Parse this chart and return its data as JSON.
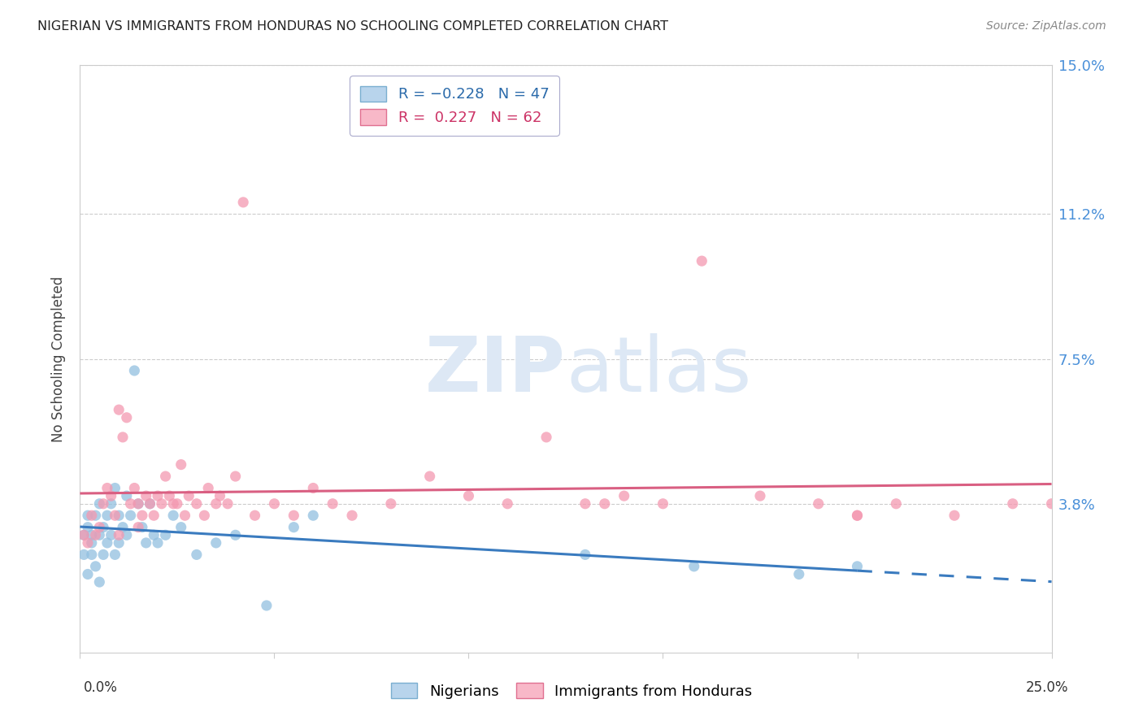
{
  "title": "NIGERIAN VS IMMIGRANTS FROM HONDURAS NO SCHOOLING COMPLETED CORRELATION CHART",
  "source": "Source: ZipAtlas.com",
  "ylabel": "No Schooling Completed",
  "yticks": [
    0.0,
    0.038,
    0.075,
    0.112,
    0.15
  ],
  "ytick_labels": [
    "",
    "3.8%",
    "7.5%",
    "11.2%",
    "15.0%"
  ],
  "xlim": [
    0.0,
    0.25
  ],
  "ylim": [
    0.0,
    0.15
  ],
  "blue_color": "#92c0e0",
  "pink_color": "#f498b0",
  "blue_line_color": "#3a7bbf",
  "pink_line_color": "#d95f82",
  "background_color": "#ffffff",
  "watermark_color": "#dde8f5",
  "grid_color": "#cccccc",
  "nigerian_x": [
    0.001,
    0.001,
    0.002,
    0.002,
    0.002,
    0.003,
    0.003,
    0.003,
    0.004,
    0.004,
    0.005,
    0.005,
    0.005,
    0.006,
    0.006,
    0.007,
    0.007,
    0.008,
    0.008,
    0.009,
    0.009,
    0.01,
    0.01,
    0.011,
    0.012,
    0.012,
    0.013,
    0.014,
    0.015,
    0.016,
    0.017,
    0.018,
    0.019,
    0.02,
    0.022,
    0.024,
    0.026,
    0.03,
    0.035,
    0.04,
    0.048,
    0.055,
    0.06,
    0.13,
    0.158,
    0.185,
    0.2
  ],
  "nigerian_y": [
    0.025,
    0.03,
    0.02,
    0.032,
    0.035,
    0.025,
    0.03,
    0.028,
    0.022,
    0.035,
    0.018,
    0.03,
    0.038,
    0.032,
    0.025,
    0.028,
    0.035,
    0.038,
    0.03,
    0.042,
    0.025,
    0.035,
    0.028,
    0.032,
    0.04,
    0.03,
    0.035,
    0.072,
    0.038,
    0.032,
    0.028,
    0.038,
    0.03,
    0.028,
    0.03,
    0.035,
    0.032,
    0.025,
    0.028,
    0.03,
    0.012,
    0.032,
    0.035,
    0.025,
    0.022,
    0.02,
    0.022
  ],
  "honduras_x": [
    0.001,
    0.002,
    0.003,
    0.004,
    0.005,
    0.006,
    0.007,
    0.008,
    0.009,
    0.01,
    0.01,
    0.011,
    0.012,
    0.013,
    0.014,
    0.015,
    0.015,
    0.016,
    0.017,
    0.018,
    0.019,
    0.02,
    0.021,
    0.022,
    0.023,
    0.024,
    0.025,
    0.026,
    0.027,
    0.028,
    0.03,
    0.032,
    0.033,
    0.035,
    0.036,
    0.038,
    0.04,
    0.042,
    0.045,
    0.05,
    0.055,
    0.06,
    0.065,
    0.07,
    0.08,
    0.09,
    0.1,
    0.11,
    0.12,
    0.13,
    0.14,
    0.15,
    0.16,
    0.175,
    0.19,
    0.2,
    0.21,
    0.225,
    0.24,
    0.25,
    0.135,
    0.2
  ],
  "honduras_y": [
    0.03,
    0.028,
    0.035,
    0.03,
    0.032,
    0.038,
    0.042,
    0.04,
    0.035,
    0.03,
    0.062,
    0.055,
    0.06,
    0.038,
    0.042,
    0.038,
    0.032,
    0.035,
    0.04,
    0.038,
    0.035,
    0.04,
    0.038,
    0.045,
    0.04,
    0.038,
    0.038,
    0.048,
    0.035,
    0.04,
    0.038,
    0.035,
    0.042,
    0.038,
    0.04,
    0.038,
    0.045,
    0.115,
    0.035,
    0.038,
    0.035,
    0.042,
    0.038,
    0.035,
    0.038,
    0.045,
    0.04,
    0.038,
    0.055,
    0.038,
    0.04,
    0.038,
    0.1,
    0.04,
    0.038,
    0.035,
    0.038,
    0.035,
    0.038,
    0.038,
    0.038,
    0.035
  ]
}
